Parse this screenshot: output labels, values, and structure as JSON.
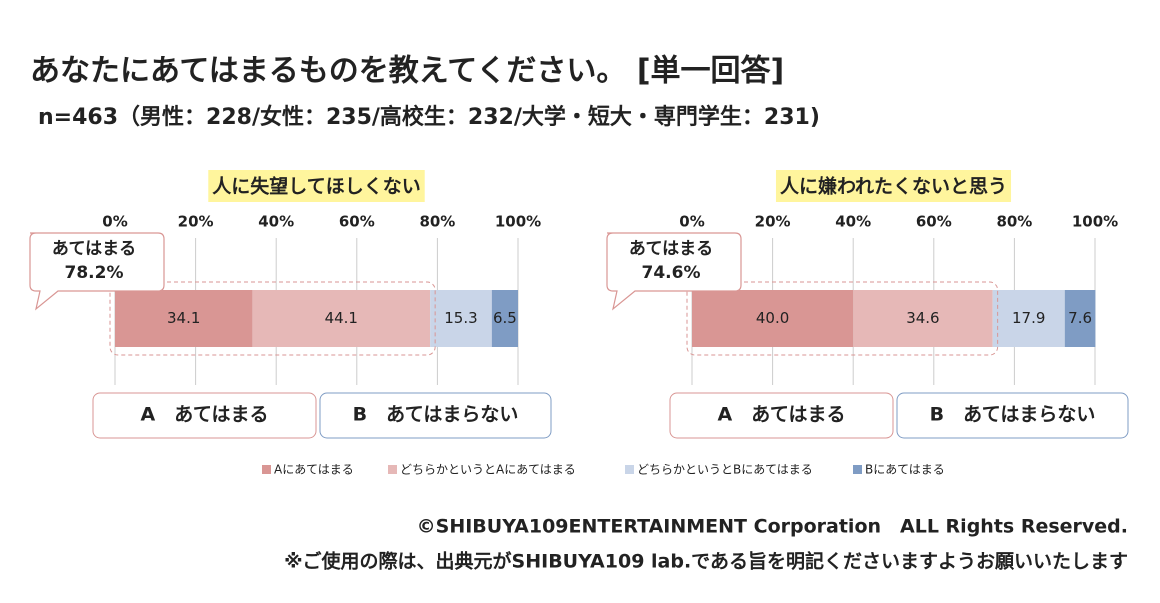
{
  "header": {
    "title": "あなたにあてはまるものを教えてください。 [単一回答]",
    "subtitle": "n=463（男性：228/女性：235/高校生：232/大学・短大・専門学生：231)"
  },
  "footer": {
    "copyright": "©SHIBUYA109ENTERTAINMENT Corporation　ALL Rights Reserved.",
    "notice": "※ご使用の際は、出典元がSHIBUYA109 lab.である旨を明記くださいますようお願いいたします"
  },
  "chart_data": [
    {
      "type": "bar",
      "orientation": "horizontal",
      "stacked": true,
      "title": "人に失望してほしくない",
      "categories": [
        null
      ],
      "series": [
        {
          "name": "Aにあてはまる",
          "color": "#d99694",
          "values": [
            34.1
          ]
        },
        {
          "name": "どちらかというとAにあてはまる",
          "color": "#e6b8b7",
          "values": [
            44.1
          ]
        },
        {
          "name": "どちらかというとBにあてはまる",
          "color": "#c9d5e8",
          "values": [
            15.3
          ]
        },
        {
          "name": "Bにあてはまる",
          "color": "#7f9cc4",
          "values": [
            6.5
          ]
        }
      ],
      "xlim": [
        0,
        100
      ],
      "xticks": [
        {
          "value": 0,
          "label": "0%"
        },
        {
          "value": 20,
          "label": "20%"
        },
        {
          "value": 40,
          "label": "40%"
        },
        {
          "value": 60,
          "label": "60%"
        },
        {
          "value": 80,
          "label": "80%"
        },
        {
          "value": 100,
          "label": "100%"
        }
      ],
      "grid": true,
      "annotations": [
        {
          "text": "あてはまる",
          "value": 78.2,
          "label": "78.2%"
        }
      ],
      "groups": [
        "A　あてはまる",
        "B　あてはまらない"
      ]
    },
    {
      "type": "bar",
      "orientation": "horizontal",
      "stacked": true,
      "title": "人に嫌われたくないと思う",
      "categories": [
        null
      ],
      "series": [
        {
          "name": "Aにあてはまる",
          "color": "#d99694",
          "values": [
            40.0
          ],
          "value_labels": [
            "40.0"
          ]
        },
        {
          "name": "どちらかというとAにあてはまる",
          "color": "#e6b8b7",
          "values": [
            34.6
          ]
        },
        {
          "name": "どちらかというとBにあてはまる",
          "color": "#c9d5e8",
          "values": [
            17.9
          ]
        },
        {
          "name": "Bにあてはまる",
          "color": "#7f9cc4",
          "values": [
            7.6
          ]
        }
      ],
      "xlim": [
        0,
        100
      ],
      "xticks": [
        {
          "value": 0,
          "label": "0%"
        },
        {
          "value": 20,
          "label": "20%"
        },
        {
          "value": 40,
          "label": "40%"
        },
        {
          "value": 60,
          "label": "60%"
        },
        {
          "value": 80,
          "label": "80%"
        },
        {
          "value": 100,
          "label": "100%"
        }
      ],
      "grid": true,
      "annotations": [
        {
          "text": "あてはまる",
          "value": 74.6,
          "label": "74.6%"
        }
      ],
      "groups": [
        "A　あてはまる",
        "B　あてはまらない"
      ]
    }
  ]
}
